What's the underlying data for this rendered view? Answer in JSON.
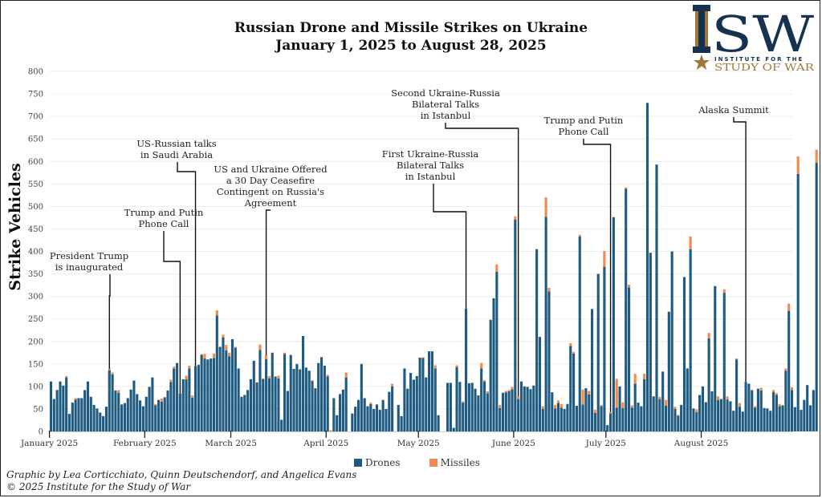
{
  "chart_data": {
    "type": "bar",
    "stacked": true,
    "title": "Russian Drone and Missile Strikes on Ukraine",
    "subtitle": "January 1, 2025 to August 28, 2025",
    "xlabel": "",
    "ylabel": "Strike Vehicles",
    "ylim": [
      0,
      800
    ],
    "yticks": [
      0,
      50,
      100,
      150,
      200,
      250,
      300,
      350,
      400,
      450,
      500,
      550,
      600,
      650,
      700,
      750,
      800
    ],
    "grid": true,
    "legend_position": "bottom-center",
    "x_start": "2025-01-01",
    "x_end": "2025-08-28",
    "month_ticks": [
      {
        "label": "January 2025",
        "day": 0
      },
      {
        "label": "February 2025",
        "day": 31
      },
      {
        "label": "March 2025",
        "day": 59
      },
      {
        "label": "April 2025",
        "day": 90
      },
      {
        "label": "May 2025",
        "day": 120
      },
      {
        "label": "June 2025",
        "day": 151
      },
      {
        "label": "July 2025",
        "day": 181
      },
      {
        "label": "August 2025",
        "day": 212
      }
    ],
    "series": [
      {
        "name": "Drones",
        "color": "#1f5b80",
        "values": [
          111,
          72,
          92,
          111,
          102,
          120,
          39,
          64,
          71,
          74,
          74,
          92,
          111,
          77,
          59,
          51,
          42,
          34,
          55,
          136,
          127,
          91,
          86,
          60,
          63,
          74,
          93,
          113,
          83,
          69,
          56,
          77,
          99,
          120,
          58,
          70,
          66,
          76,
          91,
          110,
          140,
          152,
          84,
          116,
          116,
          140,
          75,
          145,
          148,
          170,
          162,
          160,
          162,
          163,
          258,
          188,
          209,
          180,
          167,
          205,
          186,
          140,
          77,
          81,
          92,
          116,
          157,
          109,
          181,
          117,
          161,
          118,
          175,
          122,
          118,
          26,
          172,
          90,
          170,
          139,
          150,
          138,
          212,
          142,
          135,
          112,
          96,
          152,
          165,
          146,
          122,
          0,
          74,
          36,
          83,
          93,
          120,
          0,
          40,
          55,
          70,
          150,
          74,
          56,
          61,
          50,
          60,
          48,
          70,
          50,
          88,
          100,
          0,
          59,
          34,
          140,
          95,
          130,
          115,
          123,
          164,
          163,
          120,
          178,
          178,
          140,
          36,
          0,
          0,
          108,
          108,
          8,
          143,
          110,
          64,
          273,
          107,
          108,
          95,
          80,
          140,
          111,
          85,
          248,
          296,
          355,
          52,
          86,
          87,
          89,
          94,
          471,
          72,
          111,
          100,
          99,
          94,
          102,
          405,
          210,
          50,
          477,
          311,
          87,
          51,
          63,
          53,
          50,
          61,
          190,
          173,
          57,
          433,
          60,
          96,
          82,
          272,
          41,
          350,
          56,
          366,
          14,
          40,
          476,
          53,
          100,
          52,
          539,
          320,
          53,
          106,
          64,
          56,
          116,
          730,
          397,
          78,
          593,
          72,
          133,
          57,
          266,
          400,
          50,
          35,
          59,
          343,
          140,
          405,
          51,
          43,
          81,
          100,
          65,
          207,
          89,
          323,
          70,
          72,
          308,
          71,
          67,
          46,
          160,
          55,
          44,
          110,
          106,
          91,
          53,
          95,
          91,
          52,
          51,
          46,
          88,
          81,
          56,
          58,
          135,
          268,
          92,
          54,
          572,
          48,
          70,
          103,
          58,
          92,
          597
        ]
      },
      {
        "name": "Missiles",
        "color": "#f28a4b",
        "values": [
          0,
          0,
          0,
          0,
          0,
          3,
          0,
          0,
          3,
          0,
          0,
          0,
          0,
          0,
          0,
          0,
          0,
          0,
          0,
          3,
          4,
          0,
          6,
          0,
          0,
          0,
          0,
          0,
          0,
          0,
          0,
          0,
          0,
          0,
          3,
          0,
          7,
          0,
          0,
          5,
          4,
          0,
          0,
          0,
          8,
          6,
          5,
          0,
          0,
          2,
          10,
          0,
          0,
          10,
          11,
          0,
          6,
          12,
          8,
          0,
          2,
          0,
          0,
          0,
          0,
          0,
          0,
          0,
          12,
          0,
          8,
          5,
          0,
          0,
          6,
          0,
          3,
          0,
          0,
          0,
          0,
          0,
          0,
          0,
          0,
          2,
          0,
          0,
          0,
          0,
          4,
          3,
          0,
          0,
          0,
          0,
          11,
          0,
          0,
          0,
          0,
          0,
          0,
          0,
          3,
          0,
          0,
          0,
          0,
          0,
          0,
          6,
          0,
          0,
          0,
          0,
          0,
          0,
          0,
          0,
          0,
          2,
          0,
          0,
          0,
          7,
          0,
          0,
          0,
          0,
          0,
          0,
          4,
          0,
          3,
          0,
          0,
          0,
          0,
          0,
          12,
          3,
          4,
          0,
          0,
          16,
          7,
          0,
          3,
          3,
          5,
          7,
          6,
          0,
          0,
          0,
          0,
          0,
          0,
          0,
          6,
          43,
          8,
          0,
          8,
          6,
          8,
          0,
          0,
          6,
          4,
          0,
          4,
          33,
          0,
          8,
          0,
          7,
          0,
          3,
          35,
          0,
          3,
          0,
          64,
          0,
          13,
          3,
          6,
          5,
          22,
          0,
          0,
          12,
          0,
          0,
          0,
          0,
          5,
          0,
          13,
          0,
          0,
          5,
          2,
          0,
          0,
          0,
          28,
          0,
          6,
          0,
          0,
          0,
          12,
          0,
          0,
          8,
          0,
          8,
          7,
          0,
          0,
          2,
          8,
          0,
          0,
          0,
          2,
          3,
          0,
          6,
          0,
          0,
          0,
          4,
          4,
          5,
          0,
          5,
          16,
          6,
          0,
          39,
          0,
          0,
          0,
          0,
          0,
          29
        ]
      }
    ],
    "annotations": [
      {
        "lines": [
          "President Trump",
          "is inaugurated"
        ],
        "day": 19
      },
      {
        "lines": [
          "Trump and Putin",
          "Phone Call"
        ],
        "day": 42
      },
      {
        "lines": [
          "US-Russian talks",
          "in Saudi Arabia"
        ],
        "day": 47
      },
      {
        "lines": [
          "US and Ukraine Offered",
          "a 30 Day Ceasefire",
          "Contingent on Russia's",
          "Agreement"
        ],
        "day": 70
      },
      {
        "lines": [
          "First Ukraine-Russia",
          "Bilateral Talks",
          "in Istanbul"
        ],
        "day": 135
      },
      {
        "lines": [
          "Second Ukraine-Russia",
          "Bilateral Talks",
          "in Istanbul"
        ],
        "day": 152
      },
      {
        "lines": [
          "Trump and Putin",
          "Phone Call"
        ],
        "day": 182
      },
      {
        "lines": [
          "Alaska Summit"
        ],
        "day": 226
      }
    ]
  },
  "logo": {
    "mark": "ISW",
    "line1": "INSTITUTE FOR THE",
    "line2": "STUDY OF WAR"
  },
  "legend": {
    "drones": "Drones",
    "missiles": "Missiles"
  },
  "credit": {
    "line1": "Graphic by Lea Corticchiato, Quinn Deutschendorf, and Angelica Evans",
    "line2": "© 2025 Institute for the Study of War"
  }
}
